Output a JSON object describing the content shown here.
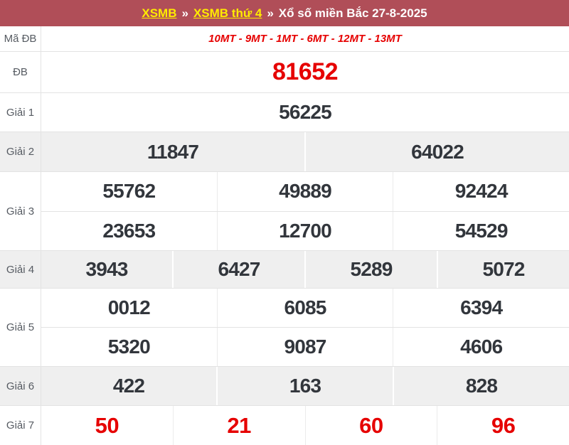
{
  "breadcrumb": {
    "link1": "XSMB",
    "separator": "»",
    "link2": "XSMB thứ 4",
    "title": "Xổ số miền Bắc 27-8-2025"
  },
  "colors": {
    "topbar_bg": "#b04e58",
    "link_yellow": "#ffeb00",
    "result_red": "#e60000",
    "number_dark": "#32363c",
    "label_grey": "#565b62",
    "alt_row_bg": "#efefef",
    "border": "#e3e3e3"
  },
  "table": {
    "rows": [
      {
        "label": "Mã ĐB",
        "height": 35,
        "bg": "white",
        "style": "code",
        "lines": [
          [
            "10MT - 9MT - 1MT - 6MT - 12MT - 13MT"
          ]
        ]
      },
      {
        "label": "ĐB",
        "height": 58,
        "bg": "white",
        "style": "special",
        "lines": [
          [
            "81652"
          ]
        ]
      },
      {
        "label": "Giải 1",
        "height": 55,
        "bg": "white",
        "style": "num",
        "lines": [
          [
            "56225"
          ]
        ]
      },
      {
        "label": "Giải 2",
        "height": 56,
        "bg": "alt",
        "style": "num",
        "lines": [
          [
            "11847",
            "64022"
          ]
        ]
      },
      {
        "label": "Giải 3",
        "height": 111,
        "bg": "white",
        "style": "num",
        "lines": [
          [
            "55762",
            "49889",
            "92424"
          ],
          [
            "23653",
            "12700",
            "54529"
          ]
        ]
      },
      {
        "label": "Giải 4",
        "height": 53,
        "bg": "alt",
        "style": "num",
        "lines": [
          [
            "3943",
            "6427",
            "5289",
            "5072"
          ]
        ]
      },
      {
        "label": "Giải 5",
        "height": 110,
        "bg": "white",
        "style": "num",
        "lines": [
          [
            "0012",
            "6085",
            "6394"
          ],
          [
            "5320",
            "9087",
            "4606"
          ]
        ]
      },
      {
        "label": "Giải 6",
        "height": 55,
        "bg": "alt",
        "style": "num",
        "lines": [
          [
            "422",
            "163",
            "828"
          ]
        ]
      },
      {
        "label": "Giải 7",
        "height": 56,
        "bg": "white",
        "style": "num7",
        "lines": [
          [
            "50",
            "21",
            "60",
            "96"
          ]
        ]
      }
    ]
  }
}
